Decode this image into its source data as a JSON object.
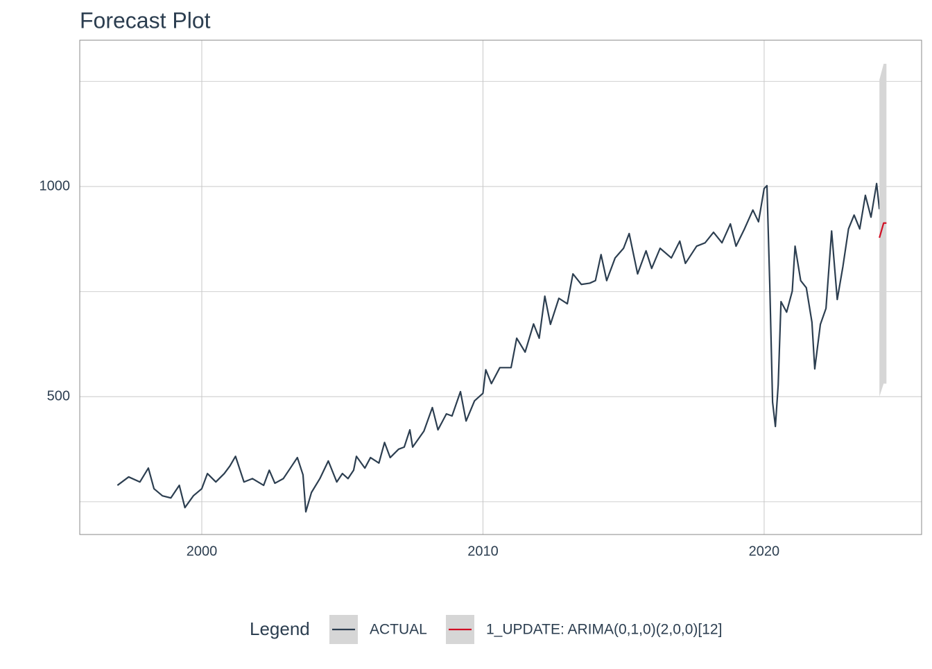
{
  "chart_data": {
    "type": "line",
    "title": "Forecast Plot",
    "legend_title": "Legend",
    "xlim": [
      1995.66,
      2025.6
    ],
    "xticks": [
      2000,
      2010,
      2020
    ],
    "ylim": [
      172,
      1348
    ],
    "yticks": [
      500,
      1000
    ],
    "yminor": [
      250,
      750,
      1250
    ],
    "grid": true,
    "series": [
      {
        "name": "ACTUAL",
        "color": "#2c3e50",
        "x": [
          1997.0,
          1997.4,
          1997.8,
          1998.1,
          1998.3,
          1998.6,
          1998.9,
          1999.2,
          1999.4,
          1999.7,
          2000.0,
          2000.2,
          2000.5,
          2000.8,
          2001.0,
          2001.2,
          2001.5,
          2001.8,
          2002.2,
          2002.4,
          2002.6,
          2002.9,
          2003.2,
          2003.4,
          2003.6,
          2003.7,
          2003.9,
          2004.2,
          2004.5,
          2004.8,
          2005.0,
          2005.2,
          2005.4,
          2005.5,
          2005.8,
          2006.0,
          2006.3,
          2006.5,
          2006.7,
          2007.0,
          2007.2,
          2007.4,
          2007.5,
          2007.9,
          2008.2,
          2008.4,
          2008.7,
          2008.9,
          2009.2,
          2009.4,
          2009.7,
          2010.0,
          2010.1,
          2010.3,
          2010.6,
          2011.0,
          2011.2,
          2011.5,
          2011.8,
          2012.0,
          2012.2,
          2012.4,
          2012.7,
          2013.0,
          2013.2,
          2013.5,
          2013.8,
          2014.0,
          2014.2,
          2014.4,
          2014.7,
          2015.0,
          2015.2,
          2015.5,
          2015.8,
          2016.0,
          2016.3,
          2016.7,
          2017.0,
          2017.2,
          2017.6,
          2017.9,
          2018.2,
          2018.5,
          2018.8,
          2019.0,
          2019.3,
          2019.6,
          2019.8,
          2020.0,
          2020.1,
          2020.2,
          2020.3,
          2020.4,
          2020.5,
          2020.6,
          2020.8,
          2021.0,
          2021.1,
          2021.3,
          2021.5,
          2021.7,
          2021.8,
          2022.0,
          2022.2,
          2022.4,
          2022.6,
          2022.8,
          2023.0,
          2023.2,
          2023.4,
          2023.6,
          2023.8,
          2024.0,
          2024.1
        ],
        "values": [
          289,
          309,
          297,
          330,
          281,
          264,
          259,
          289,
          236,
          264,
          281,
          317,
          297,
          317,
          335,
          358,
          297,
          305,
          289,
          325,
          294,
          305,
          335,
          355,
          314,
          226,
          272,
          305,
          347,
          297,
          317,
          305,
          325,
          358,
          330,
          355,
          342,
          391,
          355,
          375,
          380,
          421,
          380,
          418,
          474,
          421,
          459,
          454,
          512,
          442,
          490,
          508,
          564,
          531,
          569,
          569,
          639,
          606,
          673,
          639,
          739,
          672,
          734,
          721,
          792,
          767,
          770,
          776,
          838,
          776,
          830,
          853,
          888,
          792,
          847,
          805,
          853,
          830,
          870,
          817,
          858,
          866,
          891,
          866,
          911,
          858,
          899,
          944,
          916,
          995,
          1002,
          767,
          487,
          429,
          528,
          726,
          701,
          751,
          858,
          776,
          759,
          677,
          566,
          672,
          710,
          894,
          731,
          809,
          899,
          932,
          899,
          979,
          927,
          1007,
          946
        ]
      },
      {
        "name": "1_UPDATE: ARIMA(0,1,0)(2,0,0)[12]",
        "color": "#d10f24",
        "band_color": "#d6d6d6",
        "x": [
          2024.1,
          2024.25,
          2024.35
        ],
        "values": [
          878,
          913,
          913
        ],
        "lower": [
          500,
          531,
          531
        ],
        "upper": [
          1254,
          1292,
          1292
        ]
      }
    ]
  }
}
